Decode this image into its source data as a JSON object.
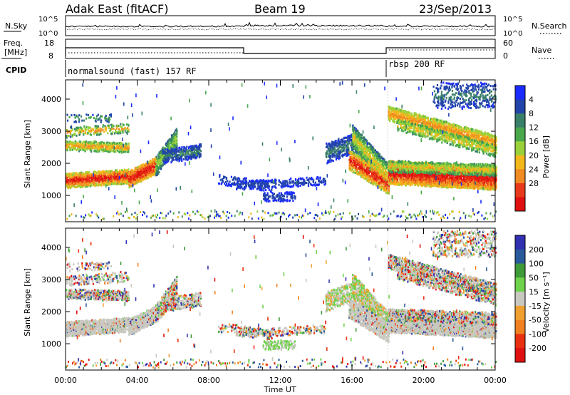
{
  "header": {
    "station": "Adak East (fitACF)",
    "beam": "Beam 19",
    "date": "23/Sep/2013"
  },
  "noise_panel": {
    "left_label": "N.Sky",
    "right_label": "N.Search",
    "left_ticks": [
      "10^5",
      "10^0"
    ],
    "right_ticks": [
      "10^5",
      "10^0"
    ]
  },
  "freq_panel": {
    "left_label_1": "Freq.",
    "left_label_2": "[MHz]",
    "right_label": "Nave",
    "left_ticks": [
      "18",
      "8"
    ],
    "right_ticks": [
      "60",
      "0"
    ]
  },
  "cpid_panel": {
    "label": "CPID",
    "modes": [
      {
        "name": "normalsound (fast) 157 RF",
        "start_hour": 0
      },
      {
        "name": "rbsp 200 RF",
        "start_hour": 18
      }
    ]
  },
  "chart_data": [
    {
      "type": "heatmap",
      "name": "power",
      "ylabel": "Slant Range [km]",
      "xlabel": "Time UT",
      "x_ticks": [
        "00:00",
        "04:00",
        "08:00",
        "12:00",
        "16:00",
        "20:00",
        "00:00"
      ],
      "xlim_hours": [
        0,
        24
      ],
      "ylim_km": [
        180,
        4600
      ],
      "y_ticks": [
        1000,
        2000,
        3000,
        4000
      ],
      "colorbar": {
        "label": "Power [dB]",
        "ticks": [
          "4",
          "8",
          "12",
          "16",
          "20",
          "24",
          "28"
        ],
        "colors": [
          "#1a2bff",
          "#2244aa",
          "#3a7f6a",
          "#49a84c",
          "#9ad13a",
          "#f2b81c",
          "#f08a22",
          "#e83a1a",
          "#e01010"
        ]
      }
    },
    {
      "type": "heatmap",
      "name": "velocity",
      "ylabel": "Slant Range [km]",
      "xlabel": "Time UT",
      "x_ticks": [
        "00:00",
        "04:00",
        "08:00",
        "12:00",
        "16:00",
        "20:00",
        "00:00"
      ],
      "xlim_hours": [
        0,
        24
      ],
      "ylim_km": [
        180,
        4600
      ],
      "y_ticks": [
        1000,
        2000,
        3000,
        4000
      ],
      "colorbar": {
        "label": "Velocity [m s⁻¹]",
        "ticks": [
          "200",
          "100",
          "50",
          "15",
          "-15",
          "-50",
          "-100",
          "-200"
        ],
        "colors": [
          "#3030b0",
          "#2a5a9c",
          "#3f9a3a",
          "#6fd24a",
          "#c8c8c0",
          "#f0a030",
          "#f08020",
          "#e83010",
          "#e01010"
        ]
      }
    }
  ],
  "footer": {
    "xlabel": "Time UT"
  }
}
